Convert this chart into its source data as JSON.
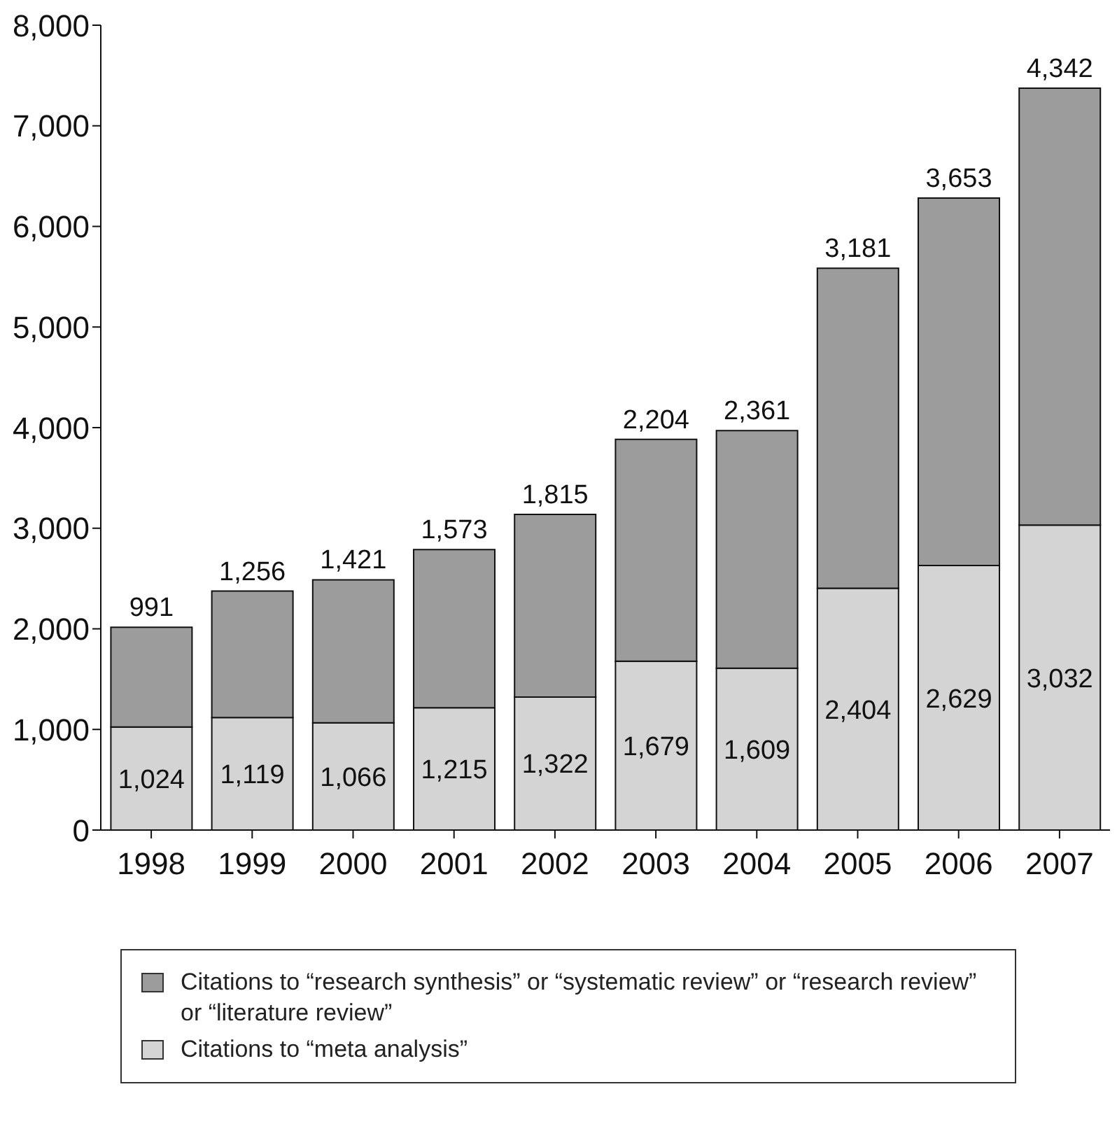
{
  "chart_data": {
    "type": "bar",
    "stacked": true,
    "categories": [
      "1998",
      "1999",
      "2000",
      "2001",
      "2002",
      "2003",
      "2004",
      "2005",
      "2006",
      "2007"
    ],
    "series": [
      {
        "name": "Citations to “meta analysis”",
        "color": "#d4d4d4",
        "values": [
          1024,
          1119,
          1066,
          1215,
          1322,
          1679,
          1609,
          2404,
          2629,
          3032
        ],
        "value_labels": [
          "1,024",
          "1,119",
          "1,066",
          "1,215",
          "1,322",
          "1,679",
          "1,609",
          "2,404",
          "2,629",
          "3,032"
        ]
      },
      {
        "name": "Citations to “research synthesis” or “systematic review” or “research review” or “literature review”",
        "color": "#9c9c9c",
        "values": [
          991,
          1256,
          1421,
          1573,
          1815,
          2204,
          2361,
          3181,
          3653,
          4342
        ],
        "value_labels": [
          "991",
          "1,256",
          "1,421",
          "1,573",
          "1,815",
          "2,204",
          "2,361",
          "3,181",
          "3,653",
          "4,342"
        ]
      }
    ],
    "ylim": [
      0,
      8000
    ],
    "yticks": [
      {
        "value": 0,
        "label": "0"
      },
      {
        "value": 1000,
        "label": "1,000"
      },
      {
        "value": 2000,
        "label": "2,000"
      },
      {
        "value": 3000,
        "label": "3,000"
      },
      {
        "value": 4000,
        "label": "4,000"
      },
      {
        "value": 5000,
        "label": "5,000"
      },
      {
        "value": 6000,
        "label": "6,000"
      },
      {
        "value": 7000,
        "label": "7,000"
      },
      {
        "value": 8000,
        "label": "8,000"
      }
    ],
    "grid": false,
    "legend": "bottom"
  }
}
